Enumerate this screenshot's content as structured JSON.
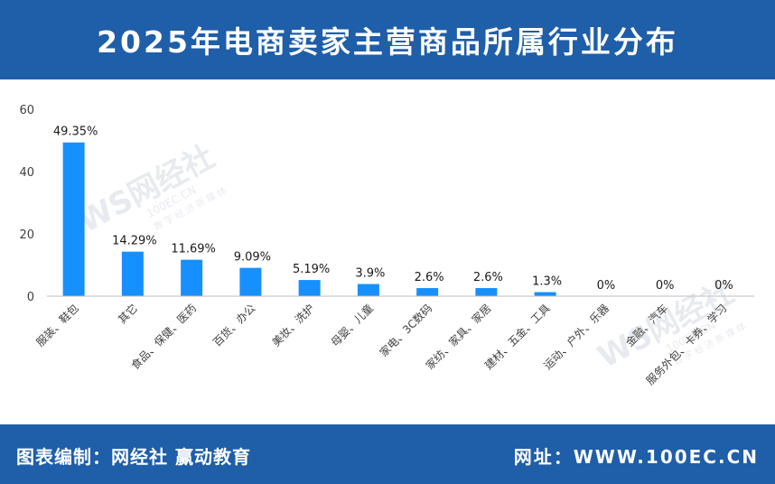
{
  "header": {
    "title": "2025年电商卖家主营商品所属行业分布"
  },
  "footer": {
    "left": "图表编制：网经社 赢动教育",
    "right": "网址：WWW.100EC.CN"
  },
  "watermark": {
    "brand": "网经社",
    "domain": "100EC.CN",
    "tagline": "数 字 经 济 新 媒 体"
  },
  "colors": {
    "bar": "#1690ff",
    "band": "#1f5ea8",
    "axis": "#bfbfbf"
  },
  "chart_data": {
    "type": "bar",
    "categories": [
      "服装、鞋包",
      "其它",
      "食品、保健、医药",
      "百货、办公",
      "美妆、洗护",
      "母婴、儿童",
      "家电、3C数码",
      "家纺、家具、家居",
      "建材、五金、工具",
      "运动、户外、乐器",
      "金融、汽车",
      "服务外包、卡券、学习"
    ],
    "values": [
      49.35,
      14.29,
      11.69,
      9.09,
      5.19,
      3.9,
      2.6,
      2.6,
      1.3,
      0,
      0,
      0
    ],
    "data_labels": [
      "49.35%",
      "14.29%",
      "11.69%",
      "9.09%",
      "5.19%",
      "3.9%",
      "2.6%",
      "2.6%",
      "1.3%",
      "0%",
      "0%",
      "0%"
    ],
    "yticks": [
      0,
      20,
      40,
      60
    ],
    "ylim": [
      0,
      60
    ],
    "grid": false,
    "legend": "none"
  }
}
